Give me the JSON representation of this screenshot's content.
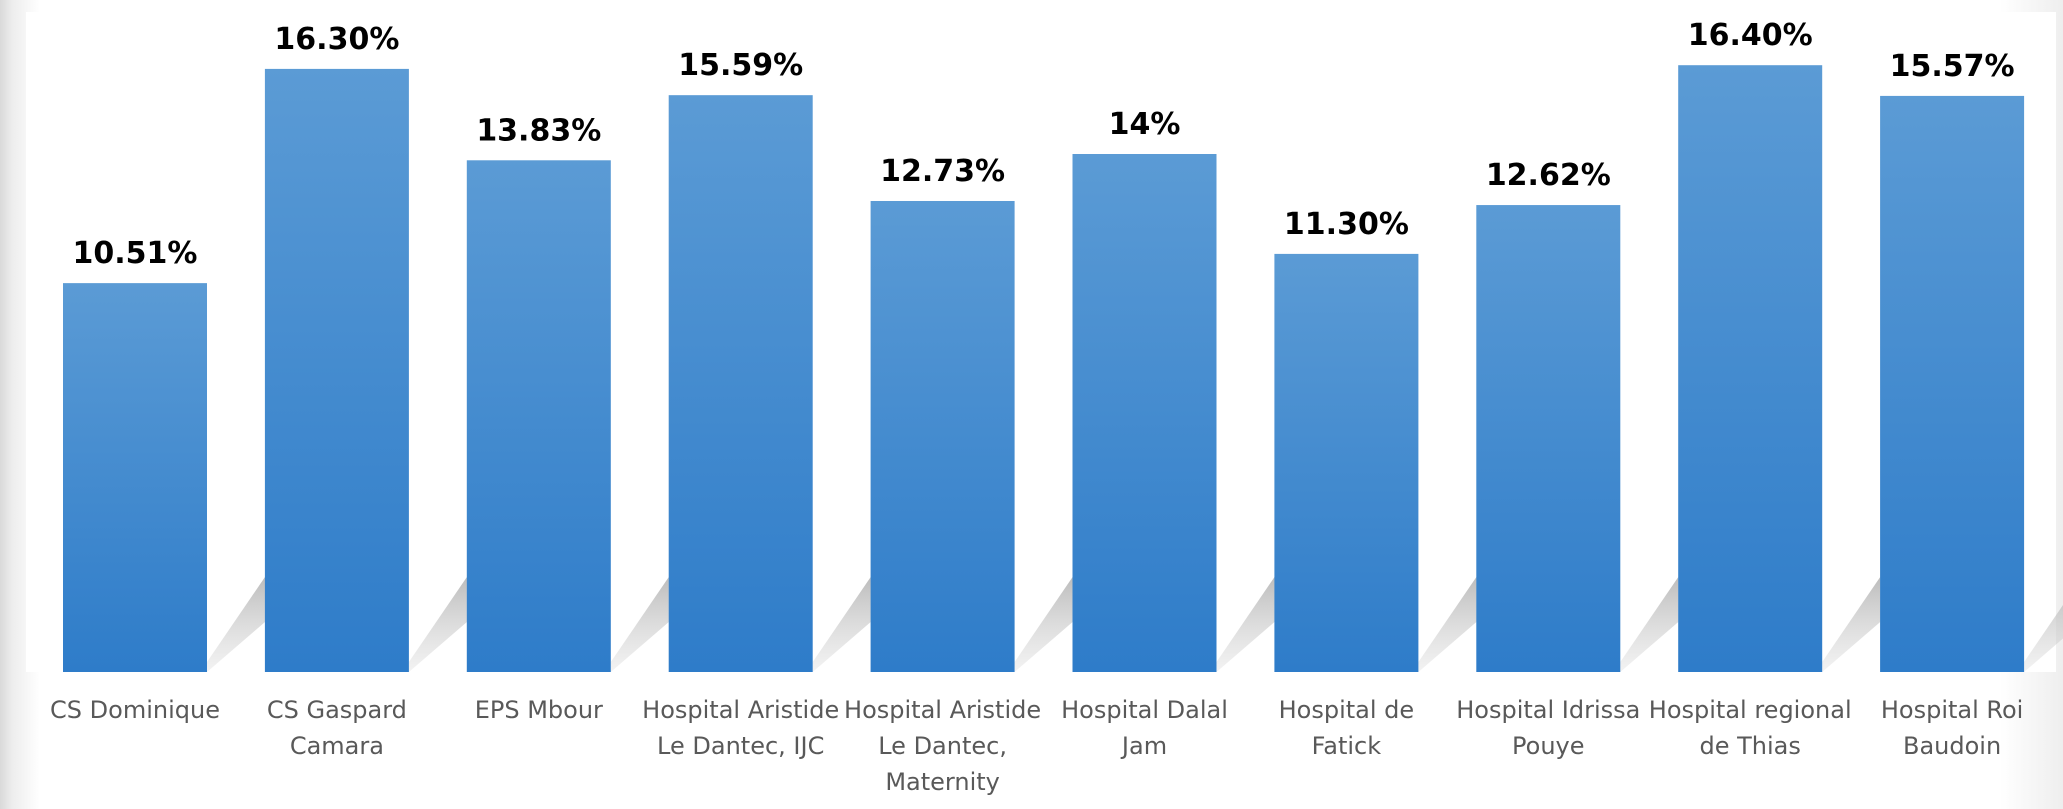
{
  "chart_data": {
    "type": "bar",
    "title": "",
    "xlabel": "",
    "ylabel": "",
    "ylim": [
      0,
      17.5
    ],
    "grid": false,
    "legend": "none",
    "bar_color_top": "#5b9bd5",
    "bar_color_bottom": "#2e7cc9",
    "categories": [
      [
        "CS Dominique"
      ],
      [
        "CS Gaspard",
        "Camara"
      ],
      [
        "EPS Mbour"
      ],
      [
        "Hospital Aristide",
        "Le Dantec, IJC"
      ],
      [
        "Hospital Aristide",
        "Le Dantec,",
        "Maternity"
      ],
      [
        "Hospital Dalal",
        "Jam"
      ],
      [
        "Hospital de",
        "Fatick"
      ],
      [
        "Hospital Idrissa",
        "Pouye"
      ],
      [
        "Hospital regional",
        "de Thias"
      ],
      [
        "Hospital Roi",
        "Baudoin"
      ]
    ],
    "values": [
      10.51,
      16.3,
      13.83,
      15.59,
      12.73,
      14,
      11.3,
      12.62,
      16.4,
      15.57
    ],
    "data_labels": [
      "10.51%",
      "16.30%",
      "13.83%",
      "15.59%",
      "12.73%",
      "14%",
      "11.30%",
      "12.62%",
      "16.40%",
      "15.57%"
    ]
  }
}
